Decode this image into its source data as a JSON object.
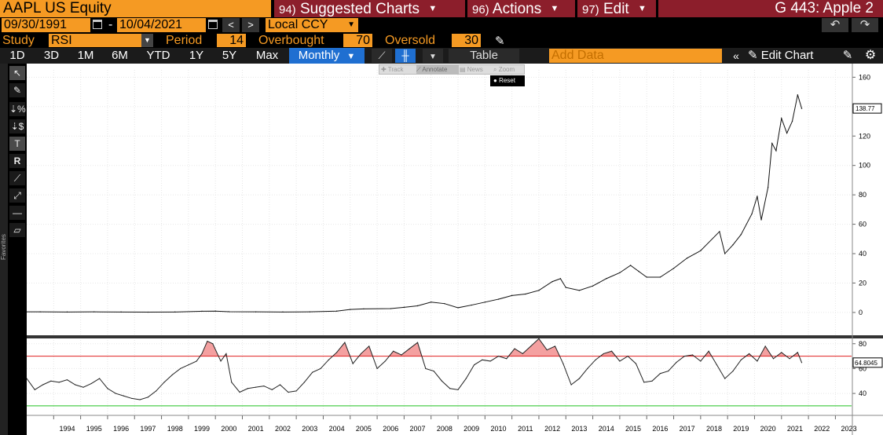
{
  "header": {
    "ticker": "AAPL US Equity",
    "menus": [
      {
        "num": "94)",
        "label": "Suggested Charts"
      },
      {
        "num": "96)",
        "label": "Actions"
      },
      {
        "num": "97)",
        "label": "Edit"
      }
    ],
    "chart_id": "G 443: Apple 2"
  },
  "date_range": {
    "start": "09/30/1991",
    "end": "10/04/2021",
    "dash": "-",
    "prev": "<",
    "next": ">",
    "currency": "Local CCY"
  },
  "study": {
    "study_label": "Study",
    "study_value": "RSI",
    "period_label": "Period",
    "period_value": "14",
    "overbought_label": "Overbought",
    "overbought_value": "70",
    "oversold_label": "Oversold",
    "oversold_value": "30"
  },
  "toolbar": {
    "ranges": [
      "1D",
      "3D",
      "1M",
      "6M",
      "YTD",
      "1Y",
      "5Y",
      "Max"
    ],
    "frequency": "Monthly",
    "table_label": "Table",
    "add_data_placeholder": "Add Data",
    "edit_chart_label": "Edit Chart"
  },
  "mini_toolbar": {
    "items": [
      "Track",
      "Annotate",
      "News",
      "Zoom"
    ],
    "reset": "Reset"
  },
  "sidebar": {
    "favorites_label": "Favorites"
  },
  "colors": {
    "bloomberg_orange": "#f59a23",
    "menu_red": "#8c1e2b",
    "active_blue": "#1f6fd1",
    "overbought_line": "#e02020",
    "oversold_line": "#22c022",
    "rsi_fill": "#f4a0a0"
  },
  "chart_data": [
    {
      "type": "line",
      "name": "price",
      "x": [
        1991.75,
        1992.5,
        1993.5,
        1994.5,
        1995.5,
        1996.5,
        1997.5,
        1998.5,
        1999.5,
        2000.0,
        2000.5,
        2001.5,
        2002.5,
        2003.5,
        2004.5,
        2005.0,
        2005.5,
        2006.5,
        2007.0,
        2007.5,
        2008.0,
        2008.5,
        2009.0,
        2009.5,
        2010.0,
        2010.5,
        2011.0,
        2011.5,
        2012.0,
        2012.5,
        2012.8,
        2013.0,
        2013.5,
        2014.0,
        2014.5,
        2015.0,
        2015.4,
        2015.7,
        2016.0,
        2016.5,
        2017.0,
        2017.5,
        2018.0,
        2018.7,
        2018.9,
        2019.2,
        2019.5,
        2019.9,
        2020.1,
        2020.25,
        2020.5,
        2020.65,
        2020.8,
        2021.0,
        2021.2,
        2021.4,
        2021.6,
        2021.75
      ],
      "values": [
        0.5,
        0.4,
        0.4,
        0.3,
        0.4,
        0.3,
        0.2,
        0.3,
        0.8,
        0.9,
        0.5,
        0.4,
        0.3,
        0.4,
        0.9,
        2.0,
        2.4,
        2.6,
        3.5,
        4.5,
        7.0,
        6.0,
        3.2,
        5.0,
        7.0,
        9.0,
        11.5,
        12.5,
        15.0,
        21.0,
        23.0,
        17.0,
        15.0,
        18.0,
        23.0,
        27.0,
        32.0,
        28.0,
        24.0,
        24.0,
        30.0,
        37.0,
        42.0,
        55.0,
        40.0,
        46.0,
        53.0,
        67.0,
        79.0,
        63.0,
        85.0,
        115.0,
        110.0,
        132.0,
        122.0,
        130.0,
        148.0,
        138.77
      ],
      "last_value_label": "138.77",
      "xlim": [
        1993.0,
        2023.6
      ],
      "ylim": [
        -15,
        165
      ],
      "y_ticks": [
        0,
        20,
        40,
        60,
        80,
        100,
        120,
        140,
        160
      ],
      "x_ticks": [
        "1994",
        "1995",
        "1996",
        "1997",
        "1998",
        "1999",
        "2000",
        "2001",
        "2002",
        "2003",
        "2004",
        "2005",
        "2006",
        "2007",
        "2008",
        "2009",
        "2010",
        "2011",
        "2012",
        "2013",
        "2014",
        "2015",
        "2016",
        "2017",
        "2018",
        "2019",
        "2020",
        "2021",
        "2022",
        "2023"
      ],
      "grid": true
    },
    {
      "type": "line",
      "name": "RSI",
      "x": [
        1993.0,
        1993.3,
        1993.6,
        1993.9,
        1994.2,
        1994.5,
        1994.8,
        1995.1,
        1995.4,
        1995.7,
        1996.0,
        1996.3,
        1996.6,
        1996.9,
        1997.2,
        1997.5,
        1997.8,
        1998.1,
        1998.4,
        1998.7,
        1999.0,
        1999.3,
        1999.5,
        1999.7,
        1999.9,
        2000.2,
        2000.4,
        2000.6,
        2000.9,
        2001.2,
        2001.5,
        2001.8,
        2002.1,
        2002.4,
        2002.7,
        2003.0,
        2003.3,
        2003.6,
        2003.9,
        2004.2,
        2004.5,
        2004.8,
        2005.1,
        2005.4,
        2005.7,
        2006.0,
        2006.3,
        2006.6,
        2006.9,
        2007.2,
        2007.5,
        2007.8,
        2008.1,
        2008.4,
        2008.7,
        2009.0,
        2009.3,
        2009.6,
        2009.9,
        2010.2,
        2010.5,
        2010.8,
        2011.1,
        2011.4,
        2011.7,
        2012.0,
        2012.3,
        2012.6,
        2012.9,
        2013.2,
        2013.5,
        2013.8,
        2014.1,
        2014.4,
        2014.7,
        2015.0,
        2015.3,
        2015.6,
        2015.9,
        2016.2,
        2016.5,
        2016.8,
        2017.1,
        2017.4,
        2017.7,
        2018.0,
        2018.3,
        2018.6,
        2018.9,
        2019.2,
        2019.5,
        2019.8,
        2020.1,
        2020.4,
        2020.7,
        2021.0,
        2021.3,
        2021.6,
        2021.75
      ],
      "values": [
        52,
        43,
        47,
        50,
        49,
        51,
        47,
        45,
        48,
        52,
        44,
        40,
        38,
        36,
        35,
        37,
        42,
        49,
        55,
        60,
        63,
        66,
        72,
        82,
        80,
        66,
        72,
        49,
        41,
        44,
        45,
        46,
        43,
        47,
        41,
        42,
        49,
        57,
        60,
        67,
        73,
        81,
        64,
        72,
        78,
        60,
        66,
        74,
        71,
        76,
        81,
        60,
        58,
        50,
        44,
        43,
        52,
        63,
        67,
        66,
        70,
        68,
        76,
        72,
        78,
        84,
        75,
        78,
        64,
        47,
        52,
        60,
        67,
        72,
        74,
        66,
        70,
        64,
        49,
        50,
        56,
        58,
        65,
        70,
        71,
        66,
        74,
        63,
        52,
        58,
        67,
        72,
        66,
        78,
        68,
        73,
        68,
        73,
        64.8045
      ],
      "last_value_label": "64.8045",
      "xlim": [
        1993.0,
        2023.6
      ],
      "ylim": [
        23,
        83
      ],
      "y_ticks": [
        40,
        60,
        80
      ],
      "overbought": 70,
      "oversold": 30
    }
  ]
}
